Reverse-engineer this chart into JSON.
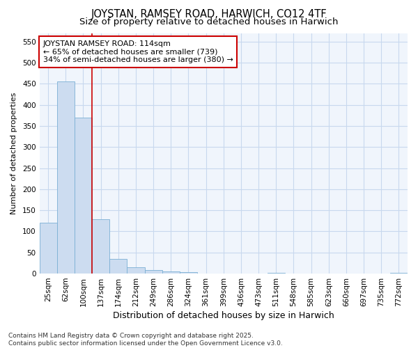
{
  "title": "JOYSTAN, RAMSEY ROAD, HARWICH, CO12 4TF",
  "subtitle": "Size of property relative to detached houses in Harwich",
  "xlabel": "Distribution of detached houses by size in Harwich",
  "ylabel": "Number of detached properties",
  "categories": [
    "25sqm",
    "62sqm",
    "100sqm",
    "137sqm",
    "174sqm",
    "212sqm",
    "249sqm",
    "286sqm",
    "324sqm",
    "361sqm",
    "399sqm",
    "436sqm",
    "473sqm",
    "511sqm",
    "548sqm",
    "585sqm",
    "623sqm",
    "660sqm",
    "697sqm",
    "735sqm",
    "772sqm"
  ],
  "values": [
    120,
    455,
    370,
    128,
    35,
    15,
    8,
    5,
    3,
    0,
    0,
    0,
    0,
    2,
    0,
    0,
    0,
    0,
    0,
    0,
    1
  ],
  "bar_color": "#ccdcf0",
  "bar_edge_color": "#7aafd4",
  "vline_x": 2.5,
  "vline_color": "#cc0000",
  "annotation_text": "JOYSTAN RAMSEY ROAD: 114sqm\n← 65% of detached houses are smaller (739)\n34% of semi-detached houses are larger (380) →",
  "annotation_box_facecolor": "#ffffff",
  "annotation_box_edgecolor": "#cc0000",
  "ylim": [
    0,
    570
  ],
  "yticks": [
    0,
    50,
    100,
    150,
    200,
    250,
    300,
    350,
    400,
    450,
    500,
    550
  ],
  "title_fontsize": 10.5,
  "subtitle_fontsize": 9.5,
  "xlabel_fontsize": 9,
  "ylabel_fontsize": 8,
  "tick_fontsize": 7.5,
  "annotation_fontsize": 8,
  "footer_text": "Contains HM Land Registry data © Crown copyright and database right 2025.\nContains public sector information licensed under the Open Government Licence v3.0.",
  "footer_fontsize": 6.5,
  "background_color": "#ffffff",
  "grid_color": "#c8d8ee",
  "plot_bg_color": "#f0f5fc"
}
